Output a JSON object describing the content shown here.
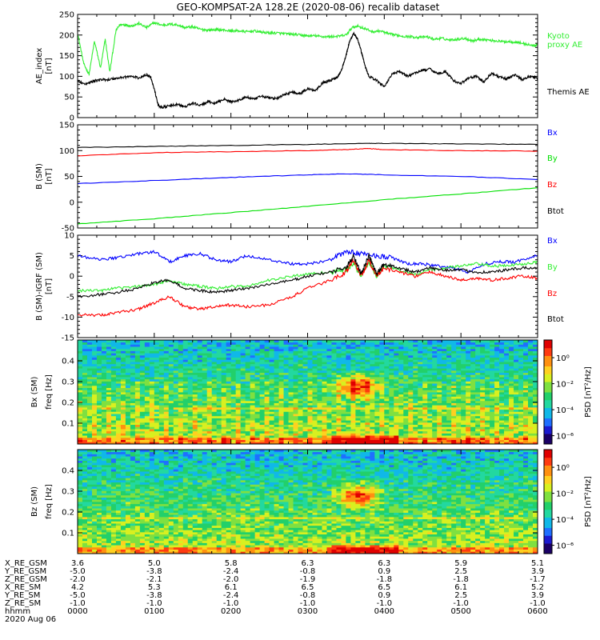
{
  "title": "GEO-KOMPSAT-2A 128.2E (2020-08-06) recalib dataset",
  "colors": {
    "black": "#000000",
    "blue": "#0000ff",
    "green": "#00e000",
    "lightgreen": "#33ee33",
    "red": "#ff0000"
  },
  "chart_data": [
    {
      "type": "line",
      "panel": "ae",
      "ylabel": "AE_index",
      "yunit": "[nT]",
      "ylim": [
        0,
        250
      ],
      "yticks": [
        "0",
        "50",
        "100",
        "150",
        "200",
        "250"
      ],
      "x_hours": [
        0,
        6
      ],
      "series": [
        {
          "name": "Kyoto proxy AE",
          "name_lines": [
            "Kyoto",
            "proxy AE"
          ],
          "color": "#33ee33",
          "x": [
            0,
            0.08,
            0.15,
            0.22,
            0.3,
            0.36,
            0.42,
            0.5,
            0.55,
            0.62,
            0.7,
            0.8,
            0.9,
            1.0,
            1.1,
            1.2,
            1.3,
            1.4,
            1.5,
            1.6,
            1.7,
            1.8,
            1.9,
            2.0,
            2.1,
            2.2,
            2.3,
            2.4,
            2.5,
            2.6,
            2.7,
            2.8,
            2.9,
            3.0,
            3.1,
            3.2,
            3.3,
            3.4,
            3.5,
            3.58,
            3.65,
            3.75,
            3.85,
            3.95,
            4.05,
            4.15,
            4.25,
            4.35,
            4.45,
            4.55,
            4.65,
            4.75,
            4.85,
            4.95,
            5.05,
            5.15,
            5.25,
            5.35,
            5.45,
            5.55,
            5.65,
            5.75,
            5.85,
            5.95,
            6.0
          ],
          "y": [
            205,
            130,
            105,
            185,
            120,
            190,
            110,
            210,
            225,
            225,
            222,
            228,
            218,
            230,
            224,
            226,
            225,
            218,
            220,
            214,
            212,
            213,
            212,
            210,
            210,
            208,
            210,
            207,
            205,
            205,
            203,
            202,
            200,
            198,
            198,
            196,
            196,
            197,
            200,
            218,
            222,
            215,
            208,
            210,
            203,
            200,
            197,
            196,
            194,
            196,
            190,
            192,
            188,
            190,
            192,
            186,
            190,
            188,
            186,
            184,
            184,
            182,
            178,
            174,
            176
          ]
        },
        {
          "name": "Themis AE",
          "name_lines": [
            "Themis AE"
          ],
          "color": "#000000",
          "x": [
            0,
            0.1,
            0.2,
            0.3,
            0.4,
            0.5,
            0.6,
            0.7,
            0.8,
            0.9,
            0.95,
            1.0,
            1.05,
            1.1,
            1.2,
            1.3,
            1.4,
            1.5,
            1.6,
            1.7,
            1.8,
            1.9,
            2.0,
            2.1,
            2.2,
            2.3,
            2.4,
            2.5,
            2.6,
            2.7,
            2.8,
            2.9,
            3.0,
            3.1,
            3.2,
            3.3,
            3.4,
            3.45,
            3.5,
            3.55,
            3.6,
            3.65,
            3.7,
            3.75,
            3.8,
            3.9,
            4.0,
            4.1,
            4.2,
            4.3,
            4.4,
            4.5,
            4.6,
            4.7,
            4.8,
            4.9,
            5.0,
            5.1,
            5.2,
            5.3,
            5.4,
            5.5,
            5.6,
            5.7,
            5.8,
            5.9,
            6.0
          ],
          "y": [
            90,
            80,
            88,
            92,
            92,
            95,
            98,
            100,
            96,
            104,
            100,
            70,
            30,
            25,
            28,
            32,
            26,
            35,
            30,
            38,
            34,
            45,
            38,
            42,
            50,
            44,
            52,
            48,
            46,
            56,
            62,
            58,
            70,
            66,
            85,
            90,
            100,
            120,
            150,
            185,
            205,
            190,
            160,
            125,
            100,
            90,
            75,
            105,
            112,
            100,
            108,
            115,
            118,
            106,
            112,
            90,
            82,
            96,
            100,
            86,
            108,
            98,
            94,
            104,
            92,
            100,
            96
          ]
        }
      ]
    },
    {
      "type": "line",
      "panel": "b",
      "ylabel": "B (SM)",
      "yunit": "[nT]",
      "ylim": [
        -50,
        150
      ],
      "yticks": [
        "-50",
        "0",
        "50",
        "100",
        "150"
      ],
      "x_hours": [
        0,
        6
      ],
      "series": [
        {
          "name": "Bx",
          "color": "#0000ff",
          "x": [
            0,
            1,
            2,
            3,
            3.5,
            4,
            5,
            6
          ],
          "y": [
            36,
            42,
            48,
            53,
            55,
            53,
            50,
            44
          ]
        },
        {
          "name": "By",
          "color": "#00e000",
          "x": [
            0,
            1,
            2,
            3,
            4,
            5,
            6
          ],
          "y": [
            -42,
            -32,
            -20,
            -8,
            5,
            16,
            28
          ]
        },
        {
          "name": "Bz",
          "color": "#ff0000",
          "x": [
            0,
            1,
            2,
            3,
            3.5,
            3.8,
            4,
            5,
            6
          ],
          "y": [
            90,
            96,
            98,
            100,
            102,
            104,
            102,
            100,
            99
          ]
        },
        {
          "name": "Btot",
          "color": "#000000",
          "x": [
            0,
            1,
            2,
            3,
            3.8,
            4,
            5,
            6
          ],
          "y": [
            106,
            108,
            110,
            112,
            114,
            114,
            113,
            112
          ]
        }
      ]
    },
    {
      "type": "line",
      "panel": "db",
      "ylabel": "B (SM)-IGRF (SM)",
      "yunit": "[nT]",
      "ylim": [
        -15,
        10
      ],
      "yticks": [
        "-15",
        "-10",
        "-5",
        "0",
        "5",
        "10"
      ],
      "x_hours": [
        0,
        6
      ],
      "series": [
        {
          "name": "Bx",
          "color": "#0000ff",
          "x": [
            0,
            0.3,
            0.5,
            0.8,
            1.0,
            1.2,
            1.4,
            1.6,
            1.8,
            2.0,
            2.2,
            2.5,
            2.8,
            3.0,
            3.3,
            3.5,
            3.7,
            3.9,
            4.1,
            4.3,
            4.5,
            4.7,
            4.9,
            5.1,
            5.3,
            5.5,
            5.7,
            6.0
          ],
          "y": [
            5,
            4,
            4.5,
            5.5,
            6,
            3.5,
            5,
            5.5,
            4,
            3.5,
            5,
            4,
            3,
            3,
            4,
            6,
            5.5,
            5,
            4.5,
            3,
            3,
            2.5,
            2,
            1,
            3,
            3.5,
            3.5,
            5
          ]
        },
        {
          "name": "By",
          "color": "#33ee33",
          "x": [
            0,
            0.3,
            0.5,
            0.8,
            1.0,
            1.2,
            1.4,
            1.6,
            1.8,
            2.0,
            2.2,
            2.5,
            2.8,
            3.0,
            3.3,
            3.5,
            3.6,
            3.7,
            3.8,
            3.9,
            4.0,
            4.2,
            4.4,
            4.6,
            4.8,
            5.0,
            5.2,
            5.4,
            5.6,
            5.8,
            6.0
          ],
          "y": [
            -3.5,
            -3.5,
            -3,
            -2.5,
            -2,
            -1,
            -2,
            -2.5,
            -3,
            -2.5,
            -2.5,
            -1,
            0,
            0.5,
            1,
            1.5,
            3,
            0,
            3.5,
            0,
            2.5,
            1.5,
            0.5,
            1.5,
            2,
            2.5,
            3,
            2.5,
            2.5,
            3,
            3.5
          ]
        },
        {
          "name": "Bz",
          "color": "#ff0000",
          "x": [
            0,
            0.3,
            0.5,
            0.8,
            1.0,
            1.2,
            1.4,
            1.6,
            1.8,
            2.0,
            2.2,
            2.5,
            2.8,
            3.0,
            3.3,
            3.5,
            3.6,
            3.7,
            3.8,
            3.9,
            4.0,
            4.2,
            4.4,
            4.6,
            4.8,
            5.0,
            5.2,
            5.4,
            5.6,
            5.8,
            6.0
          ],
          "y": [
            -9.5,
            -9.5,
            -9,
            -8,
            -6.5,
            -5,
            -7.5,
            -8,
            -7.5,
            -7,
            -7.5,
            -7,
            -5,
            -3,
            -1,
            1,
            4,
            0,
            4,
            0,
            2,
            1,
            0,
            1,
            0,
            -1,
            -0.5,
            -1,
            -0.5,
            0,
            -0.5
          ]
        },
        {
          "name": "Btot",
          "color": "#000000",
          "x": [
            0,
            0.3,
            0.5,
            0.8,
            1.0,
            1.2,
            1.4,
            1.6,
            1.8,
            2.0,
            2.2,
            2.5,
            2.8,
            3.0,
            3.3,
            3.5,
            3.6,
            3.7,
            3.8,
            3.9,
            4.0,
            4.2,
            4.4,
            4.6,
            4.8,
            5.0,
            5.2,
            5.4,
            5.6,
            5.8,
            6.0
          ],
          "y": [
            -5,
            -4.5,
            -4,
            -3,
            -1.5,
            -1,
            -3,
            -3.5,
            -4,
            -3.5,
            -3,
            -2,
            -1,
            0,
            1,
            2,
            5,
            0.5,
            5,
            0.5,
            3,
            2,
            1,
            2,
            1.5,
            1.5,
            1,
            1,
            1.5,
            2,
            2
          ]
        }
      ]
    },
    {
      "type": "heatmap",
      "panel": "spec_bx",
      "ylabel": "Bx (SM)",
      "yunit": "freq [Hz]",
      "ylim": [
        0,
        0.5
      ],
      "yticks": [
        "0.1",
        "0.2",
        "0.3",
        "0.4"
      ],
      "colorbar": {
        "label": "PSD [nT²/Hz]",
        "ticks": [
          "10⁰",
          "10⁻²",
          "10⁻⁴",
          "10⁻⁶"
        ]
      },
      "enhancement": {
        "t_start": 3.4,
        "t_end": 3.9,
        "f_center": 0.28,
        "f_halfwidth": 0.05
      }
    },
    {
      "type": "heatmap",
      "panel": "spec_bz",
      "ylabel": "Bz (SM)",
      "yunit": "freq [Hz]",
      "ylim": [
        0,
        0.5
      ],
      "yticks": [
        "0.1",
        "0.2",
        "0.3",
        "0.4"
      ],
      "colorbar": {
        "label": "PSD [nT²/Hz]",
        "ticks": [
          "10⁰",
          "10⁻²",
          "10⁻⁴",
          "10⁻⁶"
        ]
      },
      "enhancement": {
        "t_start": 3.4,
        "t_end": 3.9,
        "f_center": 0.28,
        "f_halfwidth": 0.05
      }
    }
  ],
  "ephemeris": {
    "row_labels": [
      "X_RE_GSM",
      "Y_RE_GSM",
      "Z_RE_GSM",
      "X_RE_SM",
      "Y_RE_SM",
      "Z_RE_SM",
      "hhmm"
    ],
    "date": "2020 Aug 06",
    "columns": [
      [
        "3.6",
        "-5.0",
        "-2.0",
        "4.2",
        "-5.0",
        "-1.0",
        "0000"
      ],
      [
        "5.0",
        "-3.8",
        "-2.1",
        "5.3",
        "-3.8",
        "-1.0",
        "0100"
      ],
      [
        "5.8",
        "-2.4",
        "-2.0",
        "6.1",
        "-2.4",
        "-1.0",
        "0200"
      ],
      [
        "6.3",
        "-0.8",
        "-1.9",
        "6.5",
        "-0.8",
        "-1.0",
        "0300"
      ],
      [
        "6.3",
        "0.9",
        "-1.8",
        "6.5",
        "0.9",
        "-1.0",
        "0400"
      ],
      [
        "5.9",
        "2.5",
        "-1.8",
        "6.1",
        "2.5",
        "-1.0",
        "0500"
      ],
      [
        "5.1",
        "3.9",
        "-1.7",
        "5.2",
        "3.9",
        "-1.0",
        "0600"
      ]
    ]
  }
}
